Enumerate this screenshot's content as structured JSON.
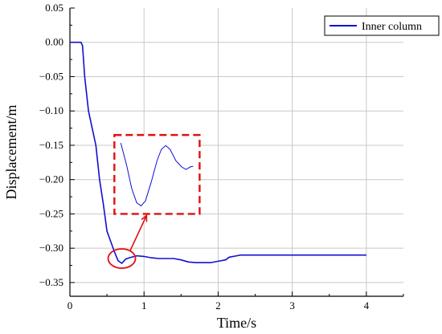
{
  "chart_data": {
    "type": "line",
    "xlabel": "Time/s",
    "ylabel": "Displacement/m",
    "xlim": [
      0,
      4.5
    ],
    "ylim": [
      -0.37,
      0.05
    ],
    "x_ticks": [
      0,
      1,
      2,
      3,
      4
    ],
    "x_tick_labels": [
      "0",
      "1",
      "2",
      "3",
      "4"
    ],
    "y_ticks": [
      0.05,
      0.0,
      -0.05,
      -0.1,
      -0.15,
      -0.2,
      -0.25,
      -0.3,
      -0.35
    ],
    "y_tick_labels": [
      "0.05",
      "0.00",
      "−0.05",
      "−0.10",
      "−0.15",
      "−0.20",
      "−0.25",
      "−0.30",
      "−0.35"
    ],
    "grid": true,
    "legend_position": "top-right",
    "series": [
      {
        "name": "Inner column",
        "color": "#1010d0",
        "points": [
          [
            0.0,
            0.0
          ],
          [
            0.15,
            0.0
          ],
          [
            0.17,
            -0.005
          ],
          [
            0.2,
            -0.05
          ],
          [
            0.25,
            -0.1
          ],
          [
            0.3,
            -0.125
          ],
          [
            0.35,
            -0.15
          ],
          [
            0.4,
            -0.2
          ],
          [
            0.45,
            -0.235
          ],
          [
            0.5,
            -0.275
          ],
          [
            0.55,
            -0.29
          ],
          [
            0.6,
            -0.305
          ],
          [
            0.65,
            -0.318
          ],
          [
            0.7,
            -0.322
          ],
          [
            0.75,
            -0.316
          ],
          [
            0.8,
            -0.314
          ],
          [
            0.9,
            -0.311
          ],
          [
            1.0,
            -0.312
          ],
          [
            1.1,
            -0.314
          ],
          [
            1.2,
            -0.315
          ],
          [
            1.4,
            -0.315
          ],
          [
            1.5,
            -0.317
          ],
          [
            1.6,
            -0.32
          ],
          [
            1.7,
            -0.321
          ],
          [
            1.8,
            -0.321
          ],
          [
            1.9,
            -0.321
          ],
          [
            2.0,
            -0.319
          ],
          [
            2.1,
            -0.317
          ],
          [
            2.15,
            -0.313
          ],
          [
            2.25,
            -0.311
          ],
          [
            2.3,
            -0.31
          ],
          [
            3.0,
            -0.31
          ],
          [
            4.0,
            -0.31
          ]
        ]
      }
    ],
    "annotation": {
      "circle_center": [
        0.7,
        -0.315
      ],
      "inset_x_range": [
        0.6,
        1.75
      ],
      "inset_y_range": [
        -0.25,
        -0.135
      ],
      "inset_curve": [
        [
          0,
          0
        ],
        [
          0.08,
          0.35
        ],
        [
          0.15,
          0.72
        ],
        [
          0.22,
          0.95
        ],
        [
          0.28,
          1.0
        ],
        [
          0.34,
          0.92
        ],
        [
          0.42,
          0.62
        ],
        [
          0.5,
          0.28
        ],
        [
          0.56,
          0.1
        ],
        [
          0.62,
          0.04
        ],
        [
          0.68,
          0.1
        ],
        [
          0.76,
          0.28
        ],
        [
          0.84,
          0.38
        ],
        [
          0.9,
          0.42
        ],
        [
          0.96,
          0.38
        ],
        [
          1.0,
          0.37
        ]
      ],
      "color": "#e01010"
    }
  }
}
